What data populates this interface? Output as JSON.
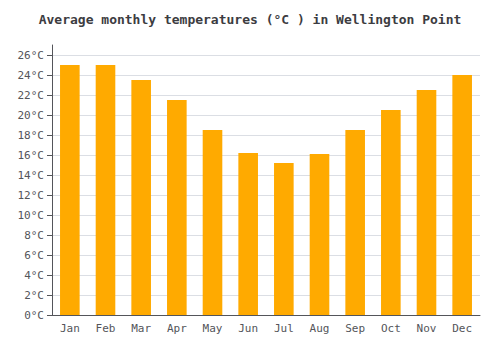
{
  "chart_data": {
    "type": "bar",
    "title": "Average monthly temperatures (°C ) in Wellington Point",
    "categories": [
      "Jan",
      "Feb",
      "Mar",
      "Apr",
      "May",
      "Jun",
      "Jul",
      "Aug",
      "Sep",
      "Oct",
      "Nov",
      "Dec"
    ],
    "values": [
      25.0,
      25.0,
      23.5,
      21.5,
      18.5,
      16.2,
      15.2,
      16.1,
      18.5,
      20.5,
      22.5,
      24.0
    ],
    "color": "#FFAA00",
    "ylim": [
      0,
      27
    ],
    "yticks": [
      {
        "value": 0,
        "label": "0°C"
      },
      {
        "value": 2,
        "label": "2°C"
      },
      {
        "value": 4,
        "label": "4°C"
      },
      {
        "value": 6,
        "label": "6°C"
      },
      {
        "value": 8,
        "label": "8°C"
      },
      {
        "value": 10,
        "label": "10°C"
      },
      {
        "value": 12,
        "label": "12°C"
      },
      {
        "value": 14,
        "label": "14°C"
      },
      {
        "value": 16,
        "label": "16°C"
      },
      {
        "value": 18,
        "label": "18°C"
      },
      {
        "value": 20,
        "label": "20°C"
      },
      {
        "value": 22,
        "label": "22°C"
      },
      {
        "value": 24,
        "label": "24°C"
      },
      {
        "value": 26,
        "label": "26°C"
      }
    ],
    "grid": true
  }
}
